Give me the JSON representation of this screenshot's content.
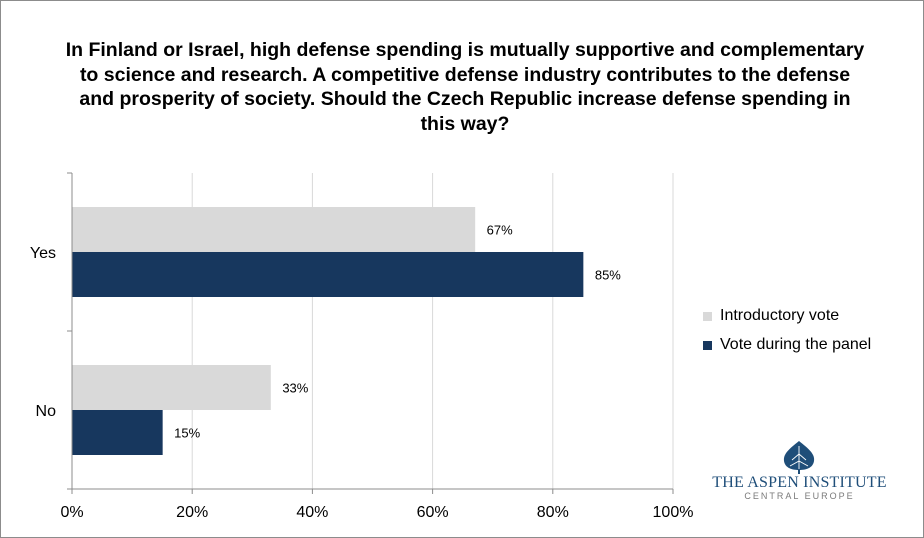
{
  "chart_data": {
    "type": "bar",
    "orientation": "horizontal",
    "title": "In Finland or Israel, high defense spending is mutually supportive and complementary to science and research. A competitive defense industry contributes to the defense and prosperity of society. Should the Czech Republic increase defense spending in this way?",
    "categories": [
      "Yes",
      "No"
    ],
    "series": [
      {
        "name": "Introductory vote",
        "values": [
          67,
          33
        ],
        "labels": [
          "67%",
          "33%"
        ],
        "color": "#d9d9d9"
      },
      {
        "name": "Vote during the panel",
        "values": [
          85,
          15
        ],
        "labels": [
          "85%",
          "15%"
        ],
        "color": "#17375e"
      }
    ],
    "xlim": [
      0,
      100
    ],
    "xticks": [
      0,
      20,
      40,
      60,
      80,
      100
    ],
    "xtick_labels": [
      "0%",
      "20%",
      "40%",
      "60%",
      "80%",
      "100%"
    ],
    "grid": true,
    "legend_position": "right"
  },
  "logo": {
    "name": "THE ASPEN INSTITUTE",
    "subtitle": "CENTRAL EUROPE",
    "icon": "aspen-leaf-icon",
    "color": "#1f4e79"
  }
}
